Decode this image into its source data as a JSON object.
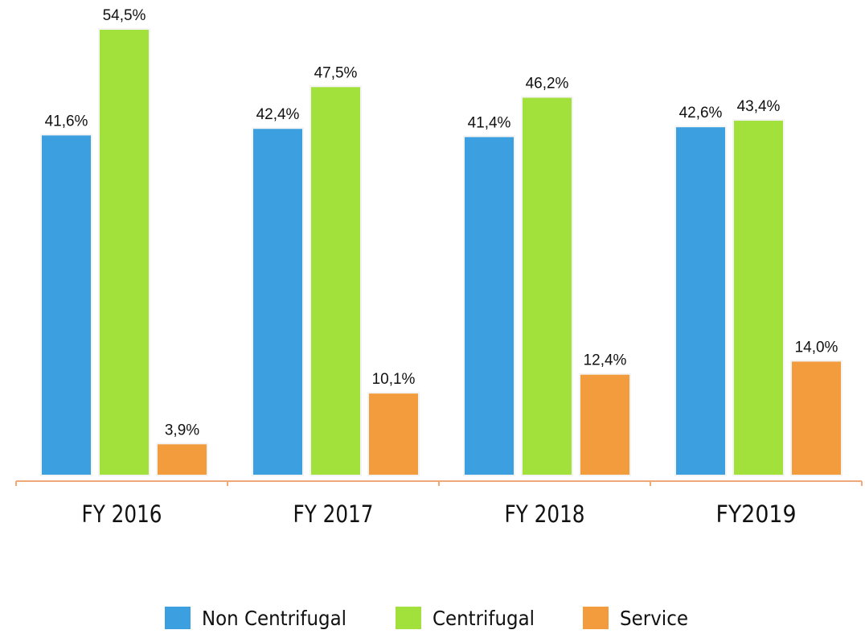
{
  "chart_data": {
    "type": "bar",
    "categories": [
      "FY 2016",
      "FY 2017",
      "FY 2018",
      "FY2019"
    ],
    "series": [
      {
        "name": "Non Centrifugal",
        "color": "#3b9fe0",
        "values": [
          41.6,
          42.4,
          41.4,
          42.6
        ],
        "value_labels": [
          "41,6%",
          "42,4%",
          "41,4%",
          "42,6%"
        ]
      },
      {
        "name": "Centrifugal",
        "color": "#a2e03c",
        "values": [
          54.5,
          47.5,
          46.2,
          43.4
        ],
        "value_labels": [
          "54,5%",
          "47,5%",
          "46,2%",
          "43,4%"
        ]
      },
      {
        "name": "Service",
        "color": "#f39c3e",
        "values": [
          3.9,
          10.1,
          12.4,
          14.0
        ],
        "value_labels": [
          "3,9%",
          "10,1%",
          "12,4%",
          "14,0%"
        ]
      }
    ]
  }
}
